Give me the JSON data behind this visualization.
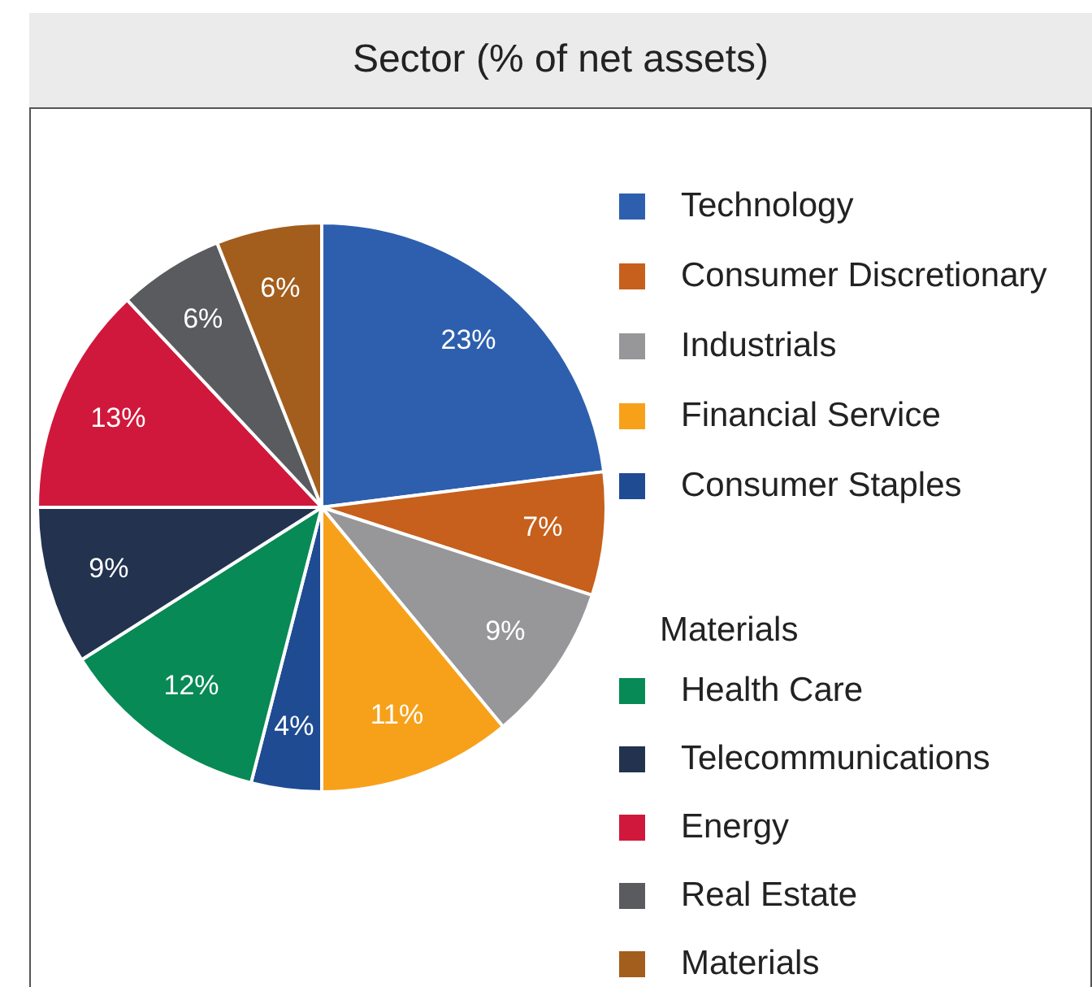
{
  "chart_data": {
    "type": "pie",
    "title": "Sector (% of net assets)",
    "categories": [
      "Technology",
      "Consumer Discretionary",
      "Industrials",
      "Financial Service",
      "Consumer Staples",
      "Health Care",
      "Telecommunications",
      "Energy",
      "Real Estate",
      "Materials"
    ],
    "values": [
      23,
      7,
      9,
      11,
      4,
      12,
      9,
      13,
      6,
      6
    ],
    "colors": [
      "#2d5fae",
      "#c6601c",
      "#97979a",
      "#f7a11a",
      "#1f4b92",
      "#078a55",
      "#22324f",
      "#d0183c",
      "#5a5b5e",
      "#a35d1c"
    ],
    "value_labels": [
      "23%",
      "7%",
      "9%",
      "11%",
      "4%",
      "12%",
      "9%",
      "13%",
      "6%",
      "6%"
    ],
    "legend": "right",
    "annotations": [
      "Materials"
    ]
  }
}
